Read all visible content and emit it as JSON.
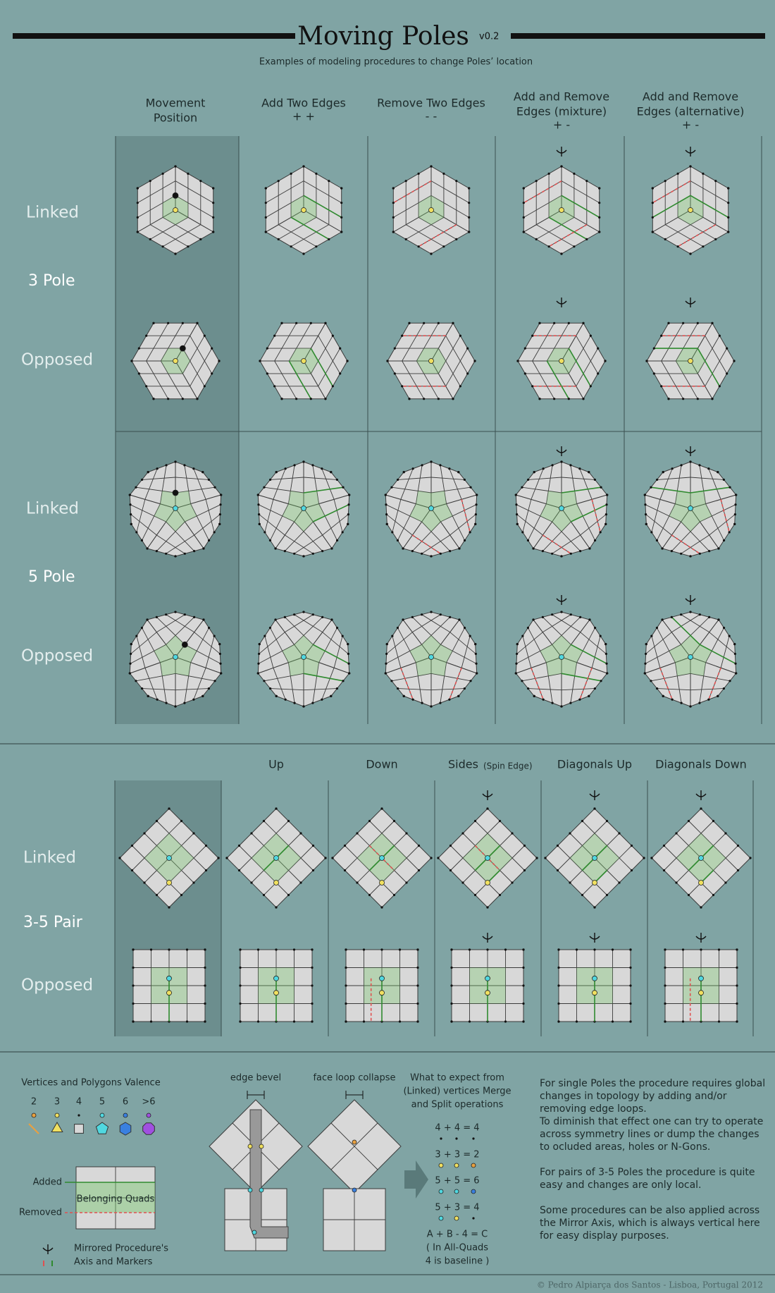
{
  "header": {
    "title": "Moving Poles",
    "version": "v0.2",
    "subtitle": "Examples of modeling procedures to change Poles’ location"
  },
  "single_poles": {
    "columns": [
      {
        "lines": [
          "Movement",
          "Position"
        ]
      },
      {
        "lines": [
          "Add Two Edges"
        ],
        "sign": "+ +"
      },
      {
        "lines": [
          "Remove Two Edges"
        ],
        "sign": "- -"
      },
      {
        "lines": [
          "Add and Remove",
          "Edges (mixture)"
        ],
        "sign": "+ -"
      },
      {
        "lines": [
          "Add and Remove",
          "Edges (alternative)"
        ],
        "sign": "+ -"
      }
    ],
    "groups": [
      {
        "name": "3 Pole",
        "rows": [
          "Linked",
          "Opposed"
        ]
      },
      {
        "name": "5 Pole",
        "rows": [
          "Linked",
          "Opposed"
        ]
      }
    ]
  },
  "pairs": {
    "columns": [
      {
        "label": "Up"
      },
      {
        "label": "Down"
      },
      {
        "label": "Sides",
        "note": "(Spin Edge)"
      },
      {
        "label": "Diagonals Up"
      },
      {
        "label": "Diagonals Down"
      }
    ],
    "group": {
      "name": "3-5 Pair",
      "rows": [
        "Linked",
        "Opposed"
      ]
    }
  },
  "legend": {
    "valence_title": "Vertices and Polygons Valence",
    "valences": [
      "2",
      "3",
      "4",
      "5",
      "6",
      ">6"
    ],
    "added": "Added",
    "removed": "Removed",
    "belonging": "Belonging Quads",
    "mirror": [
      "Mirrored Procedure's",
      "Axis and Markers"
    ],
    "edge_bevel": "edge bevel",
    "face_loop": "face loop collapse",
    "expect": [
      "What to expect from",
      "(Linked) vertices Merge",
      "and Split operations"
    ],
    "equations": [
      "4 + 4 = 4",
      "3 + 3 = 2",
      "5 + 5 = 6",
      "5 + 3 = 4"
    ],
    "rule": [
      "A + B - 4 = C",
      "( In All-Quads",
      "4 is baseline )"
    ]
  },
  "notes": [
    "For single Poles the procedure requires global changes in topology by adding and/or removing edge loops.",
    "To diminish that effect one can try to operate across symmetry lines or dump the changes to ocluded areas, holes or N-Gons.",
    "For pairs of 3-5 Poles the procedure is quite easy and changes are only local.",
    "Some procedures can be also applied across the Mirror Axis, which is always vertical here for easy display purposes."
  ],
  "footer": "© Pedro Alpiarça dos Santos -  Lisboa, Portugal 2012"
}
